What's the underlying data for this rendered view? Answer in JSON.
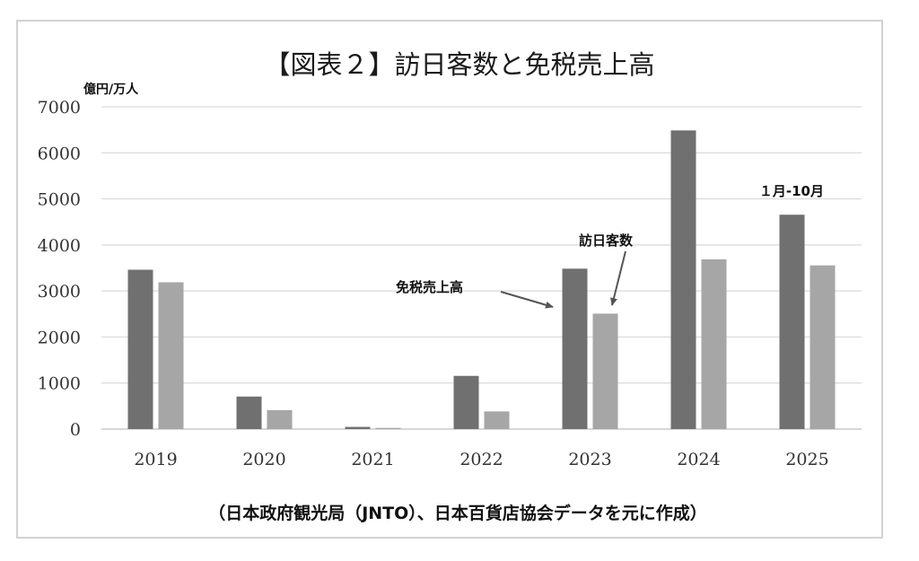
{
  "chart_data": {
    "type": "bar",
    "title": "【図表２】訪日客数と免税売上高",
    "ylabel": "億円/万人",
    "ylim": [
      0,
      7000
    ],
    "yticks": [
      0,
      1000,
      2000,
      3000,
      4000,
      5000,
      6000,
      7000
    ],
    "grid": true,
    "categories": [
      "2019",
      "2020",
      "2021",
      "2022",
      "2023",
      "2024",
      "2025"
    ],
    "series": [
      {
        "name": "免税売上高",
        "color": "#707070",
        "values": [
          3461,
          706,
          47,
          1155,
          3484,
          6487,
          4656
        ]
      },
      {
        "name": "訪日客数",
        "color": "#a6a6a6",
        "values": [
          3188,
          412,
          25,
          383,
          2507,
          3687,
          3555
        ]
      }
    ],
    "annotations": {
      "period_note": "１月-10月",
      "sales_label": "免税売上高",
      "visitors_label": "訪日客数"
    },
    "source": "（日本政府観光局（JNTO）、日本百貨店協会データを元に作成）"
  }
}
